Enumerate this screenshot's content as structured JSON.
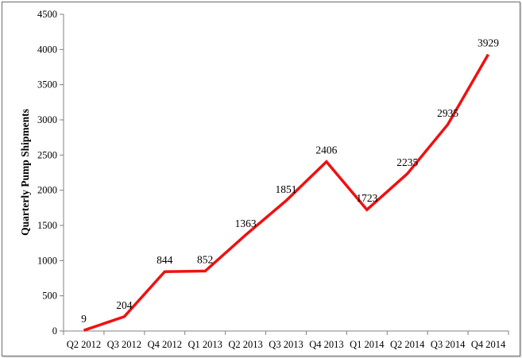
{
  "chart_data": {
    "type": "line",
    "title": "",
    "xlabel": "",
    "ylabel": "Quarterly Pump Shipments",
    "categories": [
      "Q2 2012",
      "Q3 2012",
      "Q4 2012",
      "Q1 2013",
      "Q2 2013",
      "Q3 2013",
      "Q4 2013",
      "Q1 2014",
      "Q2 2014",
      "Q3 2014",
      "Q4 2014"
    ],
    "series": [
      {
        "values": [
          9,
          204,
          844,
          852,
          1363,
          1851,
          2406,
          1723,
          2235,
          2935,
          3929
        ]
      }
    ],
    "data_labels": [
      "9",
      "204",
      "844",
      "852",
      "1363",
      "1851",
      "2406",
      "1723",
      "2235",
      "2935",
      "3929"
    ],
    "ylim": [
      0,
      4500
    ],
    "yticks": [
      0,
      500,
      1000,
      1500,
      2000,
      2500,
      3000,
      3500,
      4000,
      4500
    ],
    "ytick_labels": [
      "0",
      "500",
      "1000",
      "1500",
      "2000",
      "2500",
      "3000",
      "3500",
      "4000",
      "4500"
    ],
    "grid": false,
    "legend": "none",
    "line_color": "#ee1111"
  }
}
